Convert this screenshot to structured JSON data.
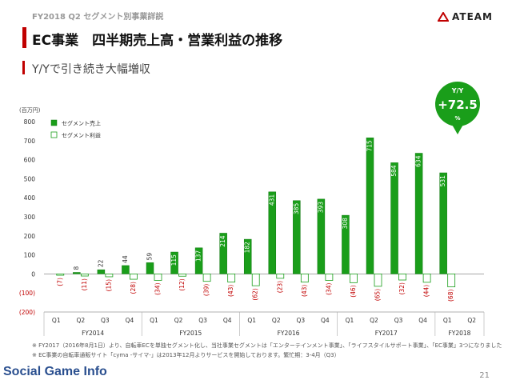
{
  "header": {
    "breadcrumb": "FY2018 Q2 セグメント別事業詳説",
    "title": "EC事業　四半期売上高・営業利益の推移",
    "subtitle": "Y/Yで引き続き大幅増収",
    "logo_text": "ATEAM"
  },
  "colors": {
    "accent": "#c00000",
    "bar": "#1a9e1a",
    "bar_edge": "#0f7a0f"
  },
  "chart_data": {
    "type": "bar",
    "unit_label": "(百万円)",
    "ylim": [
      -200,
      800
    ],
    "yticks": [
      -200,
      -100,
      0,
      100,
      200,
      300,
      400,
      500,
      600,
      700,
      800
    ],
    "ytick_labels": [
      "(200)",
      "(100)",
      "0",
      "100",
      "200",
      "300",
      "400",
      "500",
      "600",
      "700",
      "800"
    ],
    "categories": [
      "Q1",
      "Q2",
      "Q3",
      "Q4",
      "Q1",
      "Q2",
      "Q3",
      "Q4",
      "Q1",
      "Q2",
      "Q3",
      "Q4",
      "Q1",
      "Q2",
      "Q3",
      "Q4",
      "Q1",
      "Q2"
    ],
    "fiscal_years": [
      {
        "label": "FY2014",
        "start": 0,
        "count": 4
      },
      {
        "label": "FY2015",
        "start": 4,
        "count": 4
      },
      {
        "label": "FY2016",
        "start": 8,
        "count": 4
      },
      {
        "label": "FY2017",
        "start": 12,
        "count": 4
      },
      {
        "label": "FY2018",
        "start": 16,
        "count": 2
      }
    ],
    "series": [
      {
        "name": "セグメント売上",
        "values": [
          null,
          8,
          22,
          44,
          59,
          115,
          137,
          214,
          182,
          431,
          385,
          393,
          308,
          715,
          584,
          634,
          531,
          null
        ],
        "labels": [
          "",
          "8",
          "22",
          "44",
          "59",
          "115",
          "137",
          "214",
          "182",
          "431",
          "385",
          "393",
          "308",
          "715",
          "584",
          "634",
          "531",
          ""
        ]
      },
      {
        "name": "セグメント利益",
        "values": [
          -7,
          -11,
          -15,
          -28,
          -34,
          -12,
          -39,
          -43,
          -62,
          -23,
          -43,
          -34,
          -46,
          -65,
          -32,
          -44,
          -68,
          null
        ],
        "labels": [
          "(7)",
          "(11)",
          "(15)",
          "(28)",
          "(34)",
          "(12)",
          "(39)",
          "(43)",
          "(62)",
          "(23)",
          "(43)",
          "(34)",
          "(46)",
          "(65)",
          "(32)",
          "(44)",
          "(68)",
          ""
        ]
      }
    ],
    "legend_position": "top-left",
    "callout": {
      "top": "Y/Y",
      "value": "+72.5",
      "unit": "%"
    }
  },
  "notes": [
    "※ FY2017（2016年8月1日）より、自転車ECを単独セグメント化し、当社事業セグメントは「エンターテインメント事業」、「ライフスタイルサポート事業」、「EC事業」3つになりました",
    "※ EC事業の自転車通販サイト「cyma -サイマ-」は2013年12月よりサービスを開始しております。繁忙期：3-4月（Q3）"
  ],
  "watermark": "Social Game Info",
  "page_number": "21"
}
